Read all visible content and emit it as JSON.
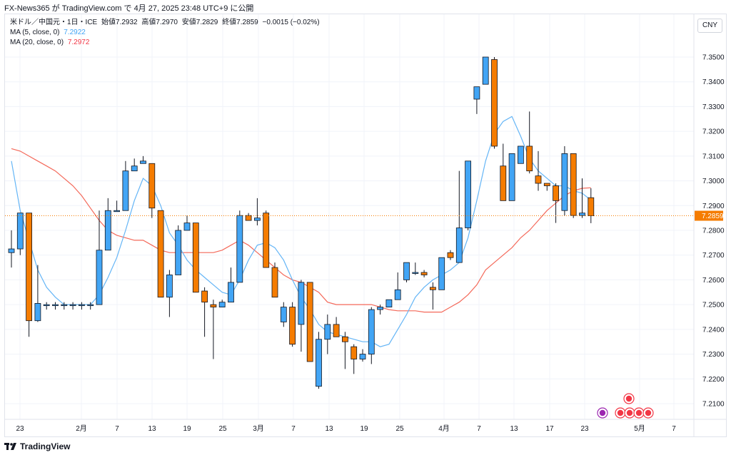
{
  "header": {
    "title": "FX-News365 が TradingView.com で 4月 27, 2025 23:48 UTC+9 に公開"
  },
  "legend": {
    "symbol": "米ドル／中国元・1日・ICE",
    "open_label": "始値",
    "open": "7.2932",
    "high_label": "高値",
    "high": "7.2970",
    "low_label": "安値",
    "low": "7.2829",
    "close_label": "終値",
    "close": "7.2859",
    "change": "−0.0015 (−0.02%)",
    "ma5_label": "MA (5, close, 0)",
    "ma5_value": "7.2922",
    "ma20_label": "MA (20, close, 0)",
    "ma20_value": "7.2972"
  },
  "currency_button": "CNY",
  "footer": {
    "brand": "TradingView"
  },
  "colors": {
    "up": "#42a5f5",
    "down": "#f57c00",
    "ma5": "#64b5f6",
    "ma20": "#f4695a",
    "last_price_bg": "#f57c00",
    "grid": "#f0f3fa"
  },
  "chart_data": {
    "type": "candlestick",
    "ylim": [
      7.216,
      7.358
    ],
    "y_ticks": [
      "7.2100",
      "7.2200",
      "7.2300",
      "7.2400",
      "7.2500",
      "7.2600",
      "7.2700",
      "7.2800",
      "7.2900",
      "7.3000",
      "7.3100",
      "7.3200",
      "7.3300",
      "7.3400",
      "7.3500"
    ],
    "x_ticks": [
      "23",
      "2月",
      "7",
      "13",
      "19",
      "25",
      "3月",
      "7",
      "13",
      "19",
      "25",
      "4月",
      "7",
      "13",
      "17",
      "23",
      "5月",
      "7"
    ],
    "last_price": "7.2859",
    "candles": [
      {
        "o": 7.271,
        "h": 7.28,
        "l": 7.265,
        "c": 7.2725
      },
      {
        "o": 7.2725,
        "h": 7.287,
        "l": 7.27,
        "c": 7.287
      },
      {
        "o": 7.287,
        "h": 7.287,
        "l": 7.237,
        "c": 7.2435
      },
      {
        "o": 7.2435,
        "h": 7.266,
        "l": 7.243,
        "c": 7.2505
      },
      {
        "o": 7.25,
        "h": 7.251,
        "l": 7.248,
        "c": 7.25
      },
      {
        "o": 7.25,
        "h": 7.251,
        "l": 7.248,
        "c": 7.25
      },
      {
        "o": 7.25,
        "h": 7.251,
        "l": 7.248,
        "c": 7.25
      },
      {
        "o": 7.25,
        "h": 7.251,
        "l": 7.248,
        "c": 7.25
      },
      {
        "o": 7.25,
        "h": 7.251,
        "l": 7.248,
        "c": 7.25
      },
      {
        "o": 7.25,
        "h": 7.251,
        "l": 7.248,
        "c": 7.25
      },
      {
        "o": 7.25,
        "h": 7.288,
        "l": 7.25,
        "c": 7.272
      },
      {
        "o": 7.272,
        "h": 7.293,
        "l": 7.272,
        "c": 7.288
      },
      {
        "o": 7.288,
        "h": 7.292,
        "l": 7.288,
        "c": 7.288
      },
      {
        "o": 7.288,
        "h": 7.308,
        "l": 7.288,
        "c": 7.304
      },
      {
        "o": 7.304,
        "h": 7.309,
        "l": 7.304,
        "c": 7.306
      },
      {
        "o": 7.307,
        "h": 7.31,
        "l": 7.307,
        "c": 7.308
      },
      {
        "o": 7.307,
        "h": 7.307,
        "l": 7.285,
        "c": 7.289
      },
      {
        "o": 7.288,
        "h": 7.288,
        "l": 7.253,
        "c": 7.253
      },
      {
        "o": 7.253,
        "h": 7.264,
        "l": 7.245,
        "c": 7.262
      },
      {
        "o": 7.262,
        "h": 7.282,
        "l": 7.262,
        "c": 7.28
      },
      {
        "o": 7.28,
        "h": 7.286,
        "l": 7.28,
        "c": 7.283
      },
      {
        "o": 7.283,
        "h": 7.283,
        "l": 7.255,
        "c": 7.255
      },
      {
        "o": 7.2555,
        "h": 7.257,
        "l": 7.237,
        "c": 7.251
      },
      {
        "o": 7.25,
        "h": 7.252,
        "l": 7.228,
        "c": 7.249
      },
      {
        "o": 7.249,
        "h": 7.252,
        "l": 7.249,
        "c": 7.251
      },
      {
        "o": 7.251,
        "h": 7.265,
        "l": 7.251,
        "c": 7.259
      },
      {
        "o": 7.259,
        "h": 7.288,
        "l": 7.259,
        "c": 7.286
      },
      {
        "o": 7.286,
        "h": 7.287,
        "l": 7.284,
        "c": 7.284
      },
      {
        "o": 7.284,
        "h": 7.293,
        "l": 7.282,
        "c": 7.285
      },
      {
        "o": 7.287,
        "h": 7.288,
        "l": 7.265,
        "c": 7.265
      },
      {
        "o": 7.265,
        "h": 7.267,
        "l": 7.253,
        "c": 7.253
      },
      {
        "o": 7.243,
        "h": 7.251,
        "l": 7.241,
        "c": 7.249
      },
      {
        "o": 7.249,
        "h": 7.251,
        "l": 7.233,
        "c": 7.234
      },
      {
        "o": 7.242,
        "h": 7.26,
        "l": 7.231,
        "c": 7.259
      },
      {
        "o": 7.259,
        "h": 7.259,
        "l": 7.227,
        "c": 7.227
      },
      {
        "o": 7.217,
        "h": 7.239,
        "l": 7.216,
        "c": 7.236
      },
      {
        "o": 7.236,
        "h": 7.246,
        "l": 7.23,
        "c": 7.242
      },
      {
        "o": 7.242,
        "h": 7.245,
        "l": 7.237,
        "c": 7.237
      },
      {
        "o": 7.237,
        "h": 7.239,
        "l": 7.224,
        "c": 7.235
      },
      {
        "o": 7.233,
        "h": 7.234,
        "l": 7.222,
        "c": 7.228
      },
      {
        "o": 7.228,
        "h": 7.232,
        "l": 7.227,
        "c": 7.23
      },
      {
        "o": 7.23,
        "h": 7.249,
        "l": 7.226,
        "c": 7.248
      },
      {
        "o": 7.248,
        "h": 7.25,
        "l": 7.246,
        "c": 7.249
      },
      {
        "o": 7.249,
        "h": 7.252,
        "l": 7.249,
        "c": 7.252
      },
      {
        "o": 7.252,
        "h": 7.263,
        "l": 7.252,
        "c": 7.256
      },
      {
        "o": 7.26,
        "h": 7.267,
        "l": 7.259,
        "c": 7.267
      },
      {
        "o": 7.263,
        "h": 7.267,
        "l": 7.262,
        "c": 7.263
      },
      {
        "o": 7.263,
        "h": 7.264,
        "l": 7.261,
        "c": 7.262
      },
      {
        "o": 7.257,
        "h": 7.259,
        "l": 7.248,
        "c": 7.256
      },
      {
        "o": 7.256,
        "h": 7.269,
        "l": 7.256,
        "c": 7.269
      },
      {
        "o": 7.271,
        "h": 7.272,
        "l": 7.268,
        "c": 7.269
      },
      {
        "o": 7.267,
        "h": 7.304,
        "l": 7.267,
        "c": 7.281
      },
      {
        "o": 7.281,
        "h": 7.308,
        "l": 7.28,
        "c": 7.308
      },
      {
        "o": 7.333,
        "h": 7.338,
        "l": 7.327,
        "c": 7.338
      },
      {
        "o": 7.339,
        "h": 7.35,
        "l": 7.339,
        "c": 7.35
      },
      {
        "o": 7.349,
        "h": 7.35,
        "l": 7.313,
        "c": 7.314
      },
      {
        "o": 7.306,
        "h": 7.315,
        "l": 7.292,
        "c": 7.292
      },
      {
        "o": 7.292,
        "h": 7.311,
        "l": 7.292,
        "c": 7.311
      },
      {
        "o": 7.307,
        "h": 7.314,
        "l": 7.307,
        "c": 7.314
      },
      {
        "o": 7.314,
        "h": 7.328,
        "l": 7.303,
        "c": 7.304
      },
      {
        "o": 7.302,
        "h": 7.312,
        "l": 7.296,
        "c": 7.299
      },
      {
        "o": 7.299,
        "h": 7.299,
        "l": 7.296,
        "c": 7.298
      },
      {
        "o": 7.298,
        "h": 7.299,
        "l": 7.283,
        "c": 7.292
      },
      {
        "o": 7.288,
        "h": 7.314,
        "l": 7.286,
        "c": 7.311
      },
      {
        "o": 7.311,
        "h": 7.311,
        "l": 7.285,
        "c": 7.286
      },
      {
        "o": 7.286,
        "h": 7.301,
        "l": 7.285,
        "c": 7.287
      },
      {
        "o": 7.2932,
        "h": 7.297,
        "l": 7.2829,
        "c": 7.2859
      }
    ],
    "ma5": [
      7.308,
      7.288,
      7.276,
      7.264,
      7.257,
      7.253,
      7.25,
      7.25,
      7.25,
      7.25,
      7.254,
      7.261,
      7.269,
      7.28,
      7.292,
      7.301,
      7.298,
      7.29,
      7.279,
      7.274,
      7.268,
      7.264,
      7.261,
      7.258,
      7.255,
      7.254,
      7.26,
      7.268,
      7.274,
      7.275,
      7.273,
      7.268,
      7.26,
      7.253,
      7.248,
      7.242,
      7.239,
      7.238,
      7.237,
      7.236,
      7.235,
      7.235,
      7.233,
      7.234,
      7.24,
      7.246,
      7.253,
      7.257,
      7.26,
      7.262,
      7.264,
      7.267,
      7.277,
      7.292,
      7.308,
      7.319,
      7.324,
      7.326,
      7.318,
      7.309,
      7.304,
      7.301,
      7.298,
      7.298,
      7.296,
      7.295,
      7.2922
    ],
    "ma20": [
      7.313,
      7.312,
      7.31,
      7.308,
      7.306,
      7.304,
      7.301,
      7.298,
      7.294,
      7.289,
      7.284,
      7.28,
      7.278,
      7.277,
      7.276,
      7.276,
      7.274,
      7.272,
      7.271,
      7.271,
      7.271,
      7.271,
      7.271,
      7.271,
      7.272,
      7.274,
      7.276,
      7.274,
      7.271,
      7.268,
      7.265,
      7.262,
      7.26,
      7.259,
      7.257,
      7.255,
      7.251,
      7.25,
      7.25,
      7.25,
      7.25,
      7.25,
      7.249,
      7.248,
      7.2475,
      7.2475,
      7.2475,
      7.247,
      7.247,
      7.247,
      7.249,
      7.251,
      7.254,
      7.258,
      7.264,
      7.267,
      7.27,
      7.273,
      7.277,
      7.28,
      7.284,
      7.288,
      7.291,
      7.294,
      7.296,
      7.297,
      7.2972
    ]
  }
}
